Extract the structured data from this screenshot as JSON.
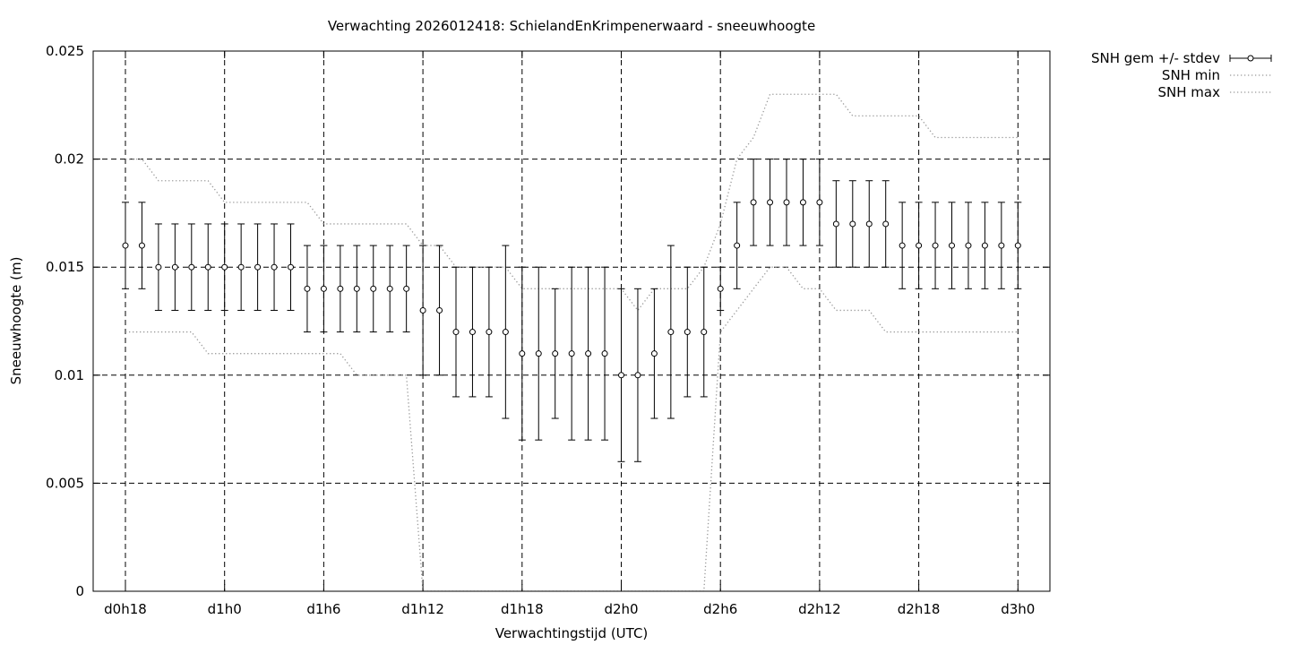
{
  "chart_data": {
    "type": "line",
    "title": "Verwachting 2026012418: SchielandEnKrimpenerwaard - sneeuwhoogte",
    "xlabel": "Verwachtingstijd (UTC)",
    "ylabel": "Sneeuwhoogte (m)",
    "x_unit": "hours since d0h18",
    "xlim": [
      -2,
      55.5
    ],
    "ylim": [
      0,
      0.025
    ],
    "x_ticks": [
      {
        "x": 0,
        "label": "d0h18"
      },
      {
        "x": 6,
        "label": "d1h0"
      },
      {
        "x": 12,
        "label": "d1h6"
      },
      {
        "x": 18,
        "label": "d1h12"
      },
      {
        "x": 24,
        "label": "d1h18"
      },
      {
        "x": 30,
        "label": "d2h0"
      },
      {
        "x": 36,
        "label": "d2h6"
      },
      {
        "x": 42,
        "label": "d2h12"
      },
      {
        "x": 48,
        "label": "d2h18"
      },
      {
        "x": 54,
        "label": "d3h0"
      }
    ],
    "y_ticks": [
      {
        "y": 0,
        "label": "0"
      },
      {
        "y": 0.005,
        "label": "0.005"
      },
      {
        "y": 0.01,
        "label": "0.01"
      },
      {
        "y": 0.015,
        "label": "0.015"
      },
      {
        "y": 0.02,
        "label": "0.02"
      },
      {
        "y": 0.025,
        "label": "0.025"
      }
    ],
    "grid": true,
    "legend_position": "outside-top-right",
    "x": [
      0,
      1,
      2,
      3,
      4,
      5,
      6,
      7,
      8,
      9,
      10,
      11,
      12,
      13,
      14,
      15,
      16,
      17,
      18,
      19,
      20,
      21,
      22,
      23,
      24,
      25,
      26,
      27,
      28,
      29,
      30,
      31,
      32,
      33,
      34,
      35,
      36,
      37,
      38,
      39,
      40,
      41,
      42,
      43,
      44,
      45,
      46,
      47,
      48,
      49,
      50,
      51,
      52,
      53,
      54
    ],
    "series": [
      {
        "name": "SNH gem +/- stdev",
        "style": "errorbars",
        "mean": [
          0.016,
          0.016,
          0.015,
          0.015,
          0.015,
          0.015,
          0.015,
          0.015,
          0.015,
          0.015,
          0.015,
          0.014,
          0.014,
          0.014,
          0.014,
          0.014,
          0.014,
          0.014,
          0.013,
          0.013,
          0.012,
          0.012,
          0.012,
          0.012,
          0.011,
          0.011,
          0.011,
          0.011,
          0.011,
          0.011,
          0.01,
          0.01,
          0.011,
          0.012,
          0.012,
          0.012,
          0.014,
          0.016,
          0.018,
          0.018,
          0.018,
          0.018,
          0.018,
          0.017,
          0.017,
          0.017,
          0.017,
          0.016,
          0.016,
          0.016,
          0.016,
          0.016,
          0.016,
          0.016,
          0.016
        ],
        "low": [
          0.014,
          0.014,
          0.013,
          0.013,
          0.013,
          0.013,
          0.013,
          0.013,
          0.013,
          0.013,
          0.013,
          0.012,
          0.012,
          0.012,
          0.012,
          0.012,
          0.012,
          0.012,
          0.01,
          0.01,
          0.009,
          0.009,
          0.009,
          0.008,
          0.007,
          0.007,
          0.008,
          0.007,
          0.007,
          0.007,
          0.006,
          0.006,
          0.008,
          0.008,
          0.009,
          0.009,
          0.013,
          0.014,
          0.016,
          0.016,
          0.016,
          0.016,
          0.016,
          0.015,
          0.015,
          0.015,
          0.015,
          0.014,
          0.014,
          0.014,
          0.014,
          0.014,
          0.014,
          0.014,
          0.014
        ],
        "high": [
          0.018,
          0.018,
          0.017,
          0.017,
          0.017,
          0.017,
          0.017,
          0.017,
          0.017,
          0.017,
          0.017,
          0.016,
          0.016,
          0.016,
          0.016,
          0.016,
          0.016,
          0.016,
          0.016,
          0.016,
          0.015,
          0.015,
          0.015,
          0.016,
          0.015,
          0.015,
          0.014,
          0.015,
          0.015,
          0.015,
          0.014,
          0.014,
          0.014,
          0.016,
          0.015,
          0.015,
          0.015,
          0.018,
          0.02,
          0.02,
          0.02,
          0.02,
          0.02,
          0.019,
          0.019,
          0.019,
          0.019,
          0.018,
          0.018,
          0.018,
          0.018,
          0.018,
          0.018,
          0.018,
          0.018
        ]
      },
      {
        "name": "SNH min",
        "style": "dotted",
        "color": "#9a9a9a",
        "points": [
          [
            0,
            0.012
          ],
          [
            4,
            0.012
          ],
          [
            5,
            0.011
          ],
          [
            13,
            0.011
          ],
          [
            14,
            0.01
          ],
          [
            17,
            0.01
          ],
          [
            18,
            0
          ],
          [
            35,
            0
          ],
          [
            36,
            0.012
          ],
          [
            37,
            0.013
          ],
          [
            38,
            0.014
          ],
          [
            39,
            0.015
          ],
          [
            40,
            0.015
          ],
          [
            41,
            0.014
          ],
          [
            42,
            0.014
          ],
          [
            43,
            0.013
          ],
          [
            45,
            0.013
          ],
          [
            46,
            0.012
          ],
          [
            54,
            0.012
          ]
        ]
      },
      {
        "name": "SNH max",
        "style": "dotted",
        "color": "#9a9a9a",
        "points": [
          [
            0,
            0.02
          ],
          [
            1,
            0.02
          ],
          [
            2,
            0.019
          ],
          [
            5,
            0.019
          ],
          [
            6,
            0.018
          ],
          [
            11,
            0.018
          ],
          [
            12,
            0.017
          ],
          [
            17,
            0.017
          ],
          [
            18,
            0.016
          ],
          [
            19,
            0.016
          ],
          [
            20,
            0.015
          ],
          [
            23,
            0.015
          ],
          [
            24,
            0.014
          ],
          [
            30,
            0.014
          ],
          [
            31,
            0.013
          ],
          [
            32,
            0.014
          ],
          [
            34,
            0.014
          ],
          [
            35,
            0.015
          ],
          [
            36,
            0.017
          ],
          [
            37,
            0.02
          ],
          [
            38,
            0.021
          ],
          [
            39,
            0.023
          ],
          [
            43,
            0.023
          ],
          [
            44,
            0.022
          ],
          [
            48,
            0.022
          ],
          [
            49,
            0.021
          ],
          [
            54,
            0.021
          ]
        ]
      }
    ]
  }
}
